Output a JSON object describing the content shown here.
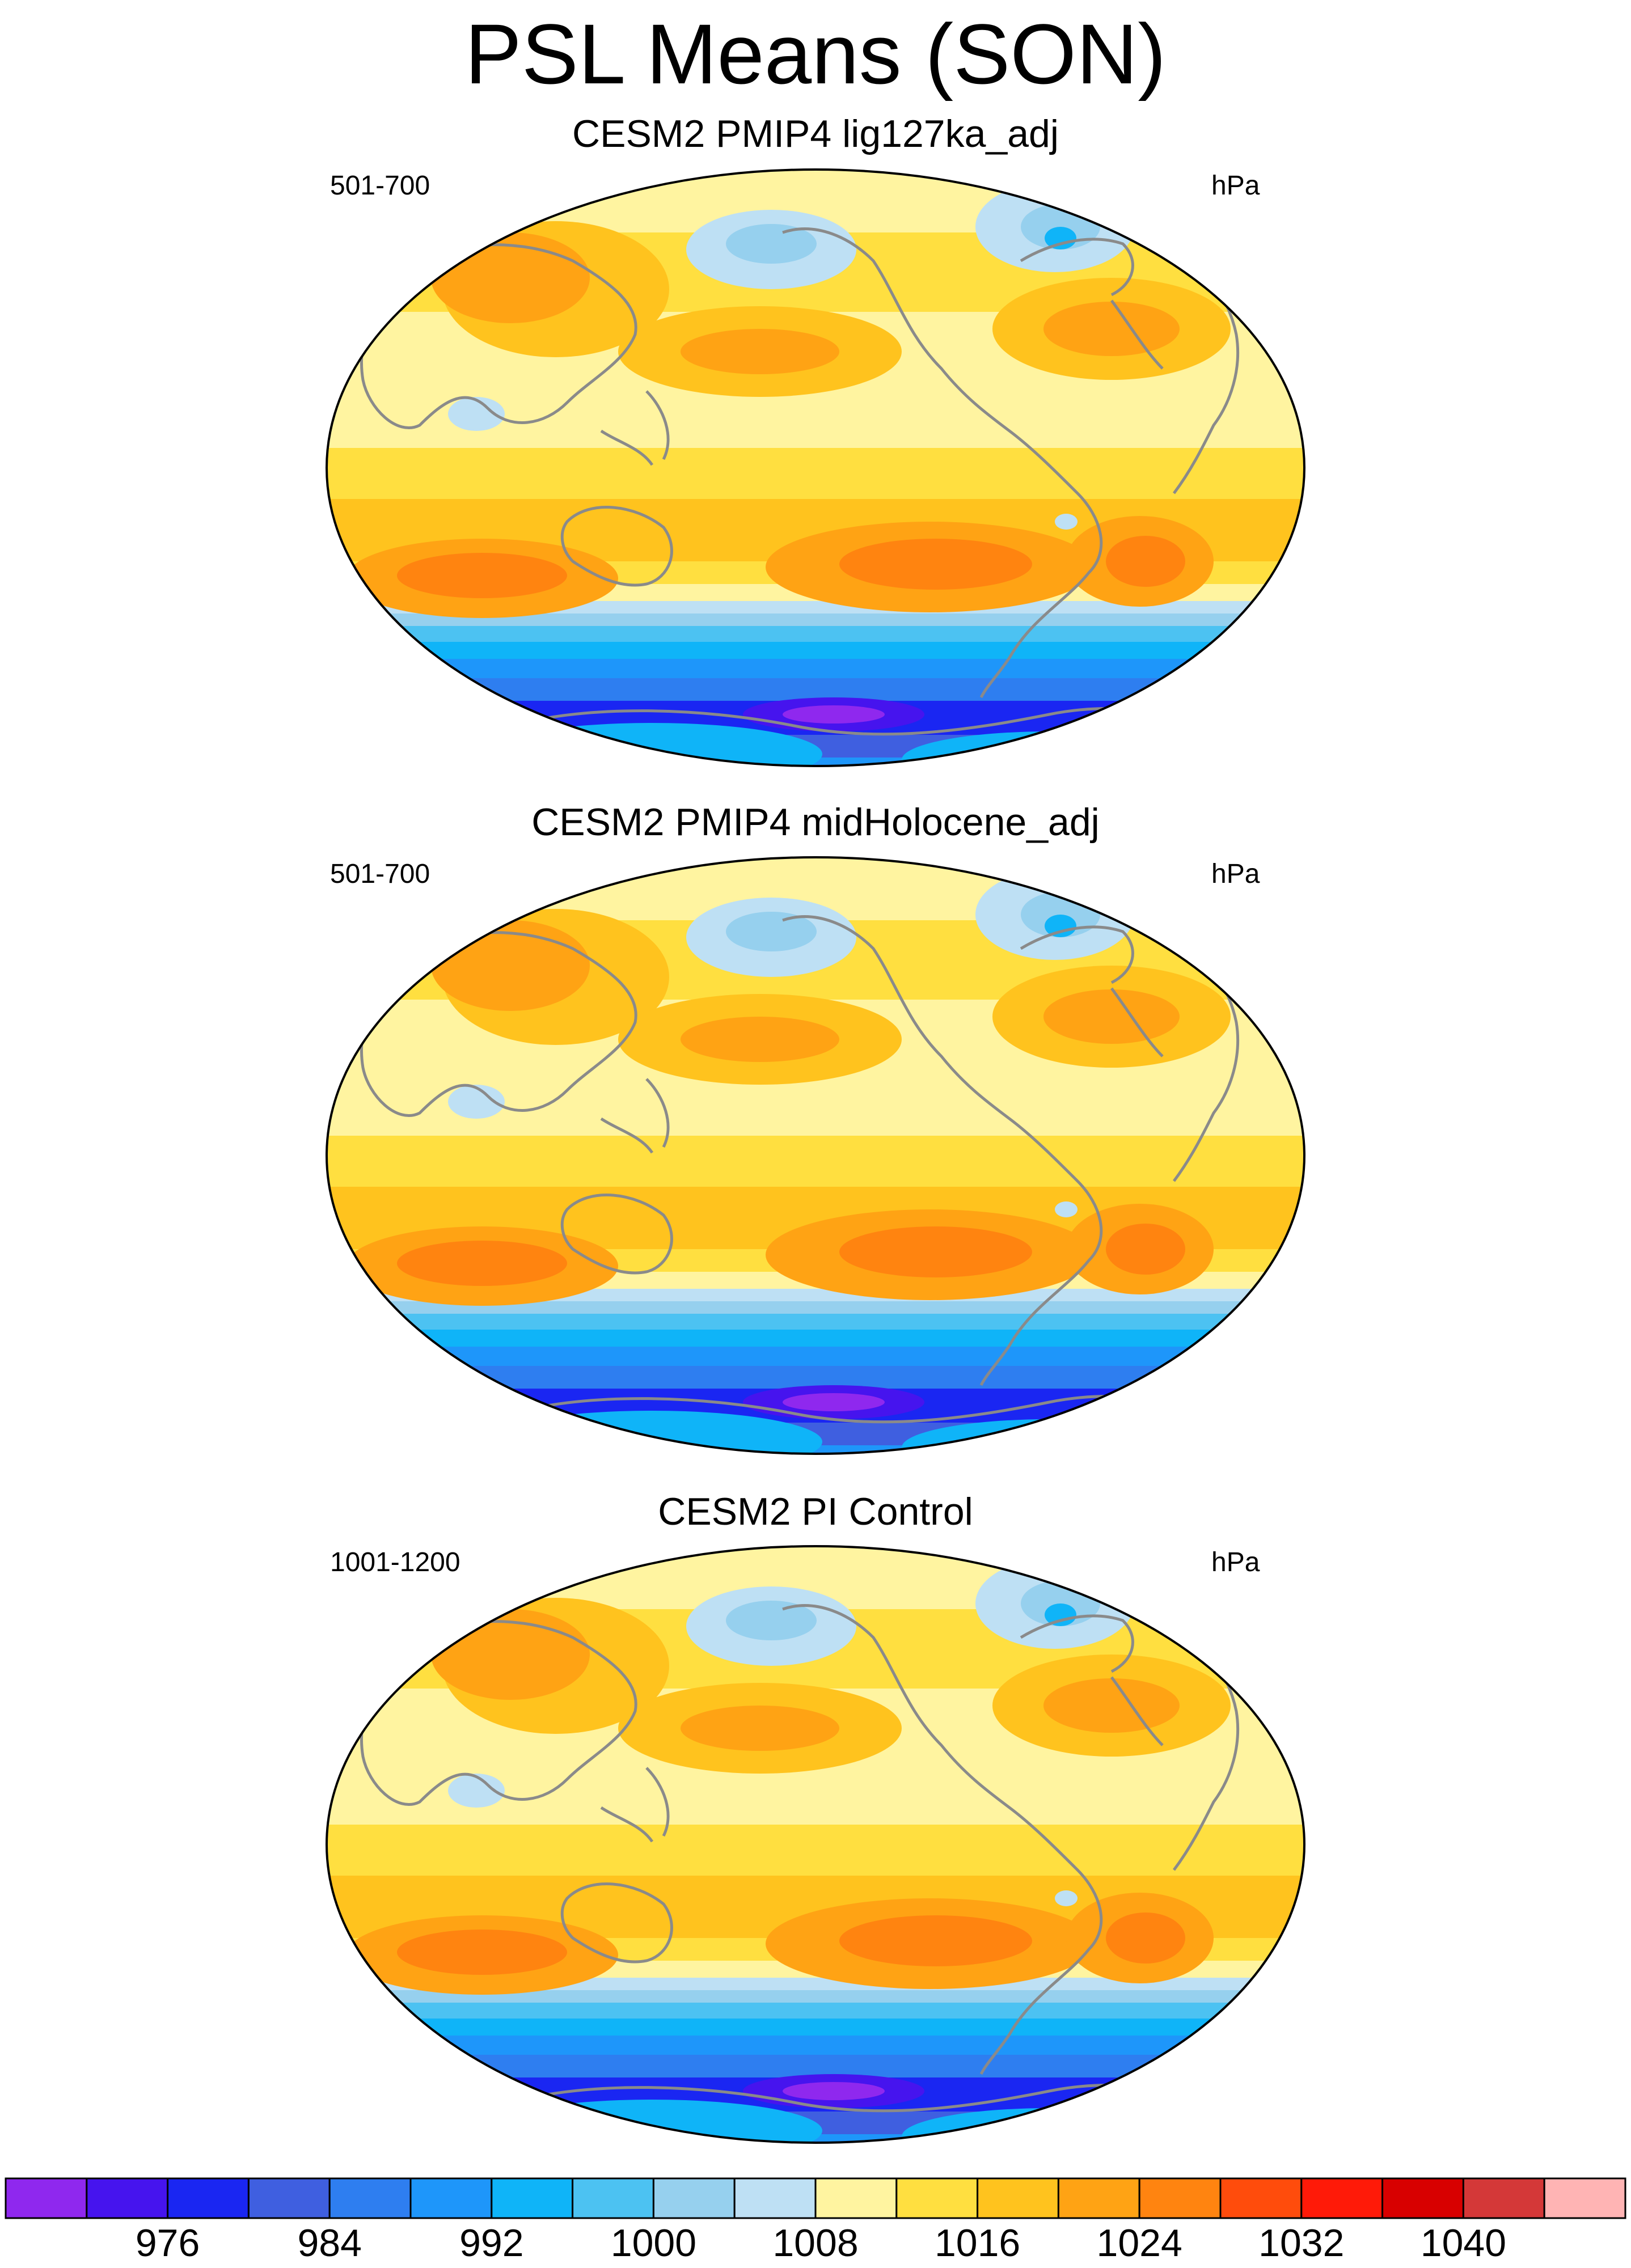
{
  "figure": {
    "title": "PSL Means (SON)"
  },
  "panels": [
    {
      "title": "CESM2 PMIP4 lig127ka_adj",
      "left_label": "501-700",
      "right_label": "hPa"
    },
    {
      "title": "CESM2 PMIP4 midHolocene_adj",
      "left_label": "501-700",
      "right_label": "hPa"
    },
    {
      "title": "CESM2 PI Control",
      "left_label": "1001-1200",
      "right_label": "hPa"
    }
  ],
  "colorbar": {
    "labels": [
      "976",
      "984",
      "992",
      "1000",
      "1008",
      "1016",
      "1024",
      "1032",
      "1040"
    ],
    "colors": [
      "#8f28ee",
      "#4614ee",
      "#1a26f2",
      "#3f5fe0",
      "#2e7ef0",
      "#1e96fa",
      "#0fb4f8",
      "#4cc2f2",
      "#96d0ee",
      "#bee0f4",
      "#fff4a0",
      "#ffdf40",
      "#ffc31e",
      "#ffa314",
      "#ff8410",
      "#ff4c0c",
      "#ff1a08",
      "#d80000",
      "#d43838",
      "#ffb4b4"
    ]
  }
}
